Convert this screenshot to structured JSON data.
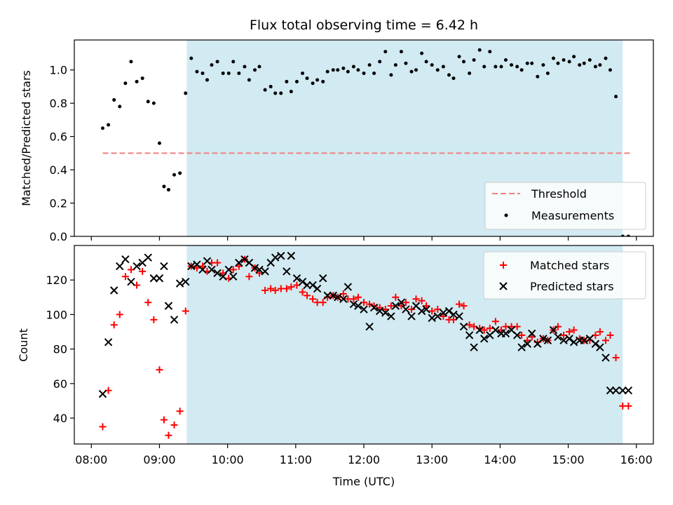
{
  "chart_data": [
    {
      "type": "scatter",
      "title": "Flux total observing time = 6.42 h",
      "xlabel": "",
      "ylabel": "Matched/Predicted stars",
      "ylim": [
        0,
        1.18
      ],
      "y_ticks": [
        "0.0",
        "0.2",
        "0.4",
        "0.6",
        "0.8",
        "1.0"
      ],
      "x_ticks": [
        "08:00",
        "09:00",
        "10:00",
        "11:00",
        "12:00",
        "13:00",
        "14:00",
        "15:00",
        "16:00"
      ],
      "shaded_region": {
        "start": "09:24",
        "end": "15:48",
        "color": "#add8e6"
      },
      "threshold": {
        "name": "Threshold",
        "value": 0.5,
        "start": "08:10",
        "end": "15:55",
        "color": "#f08080"
      },
      "legend": {
        "position": "lower-right",
        "entries": [
          "Threshold",
          "Measurements"
        ]
      },
      "series": [
        {
          "name": "Measurements",
          "color": "#000000",
          "x": [
            "08:10",
            "08:15",
            "08:20",
            "08:25",
            "08:30",
            "08:35",
            "08:40",
            "08:45",
            "08:50",
            "08:55",
            "09:00",
            "09:04",
            "09:08",
            "09:13",
            "09:18",
            "09:23",
            "09:28",
            "09:33",
            "09:38",
            "09:42",
            "09:46",
            "09:51",
            "09:56",
            "10:01",
            "10:05",
            "10:10",
            "10:15",
            "10:19",
            "10:24",
            "10:28",
            "10:33",
            "10:38",
            "10:42",
            "10:47",
            "10:52",
            "10:56",
            "11:01",
            "11:06",
            "11:10",
            "11:15",
            "11:19",
            "11:24",
            "11:28",
            "11:33",
            "11:37",
            "11:42",
            "11:46",
            "11:51",
            "11:55",
            "12:00",
            "12:05",
            "12:09",
            "12:14",
            "12:19",
            "12:24",
            "12:28",
            "12:33",
            "12:37",
            "12:42",
            "12:46",
            "12:51",
            "12:55",
            "13:00",
            "13:05",
            "13:10",
            "13:15",
            "13:19",
            "13:24",
            "13:28",
            "13:33",
            "13:37",
            "13:42",
            "13:46",
            "13:51",
            "13:56",
            "14:01",
            "14:05",
            "14:10",
            "14:15",
            "14:19",
            "14:24",
            "14:28",
            "14:33",
            "14:38",
            "14:42",
            "14:47",
            "14:51",
            "14:56",
            "15:01",
            "15:05",
            "15:10",
            "15:14",
            "15:19",
            "15:24",
            "15:28",
            "15:33",
            "15:37",
            "15:42",
            "15:48",
            "15:53"
          ],
          "y": [
            0.65,
            0.67,
            0.82,
            0.78,
            0.92,
            1.05,
            0.93,
            0.95,
            0.81,
            0.8,
            0.56,
            0.3,
            0.28,
            0.37,
            0.38,
            0.86,
            1.07,
            0.99,
            0.98,
            0.94,
            1.03,
            1.05,
            0.98,
            0.98,
            1.05,
            0.98,
            1.02,
            0.94,
            1.0,
            1.02,
            0.88,
            0.9,
            0.86,
            0.86,
            0.93,
            0.87,
            0.93,
            0.98,
            0.95,
            0.92,
            0.94,
            0.93,
            0.99,
            1.0,
            1.0,
            1.01,
            0.99,
            1.02,
            1.0,
            0.98,
            1.03,
            0.98,
            1.05,
            1.11,
            0.97,
            1.03,
            1.11,
            1.04,
            0.99,
            1.0,
            1.1,
            1.05,
            1.03,
            1.0,
            1.02,
            0.97,
            0.95,
            1.08,
            1.05,
            0.98,
            1.06,
            1.12,
            1.02,
            1.11,
            1.02,
            1.02,
            1.06,
            1.03,
            1.02,
            1.0,
            1.04,
            1.04,
            0.96,
            1.03,
            0.98,
            1.07,
            1.04,
            1.06,
            1.05,
            1.08,
            1.03,
            1.04,
            1.06,
            1.02,
            1.03,
            1.07,
            1.0,
            0.84,
            0.0,
            0.0
          ]
        }
      ]
    },
    {
      "type": "scatter",
      "title": "",
      "xlabel": "Time (UTC)",
      "ylabel": "Count",
      "ylim": [
        25,
        140
      ],
      "y_ticks": [
        "40",
        "60",
        "80",
        "100",
        "120"
      ],
      "x_ticks": [
        "08:00",
        "09:00",
        "10:00",
        "11:00",
        "12:00",
        "13:00",
        "14:00",
        "15:00",
        "16:00"
      ],
      "shaded_region": {
        "start": "09:24",
        "end": "15:48",
        "color": "#add8e6"
      },
      "legend": {
        "position": "upper-right",
        "entries": [
          "Matched stars",
          "Predicted stars"
        ]
      },
      "series": [
        {
          "name": "Matched stars",
          "marker": "plus",
          "color": "#ff0000",
          "x": [
            "08:10",
            "08:15",
            "08:20",
            "08:25",
            "08:30",
            "08:35",
            "08:40",
            "08:45",
            "08:50",
            "08:55",
            "09:00",
            "09:04",
            "09:08",
            "09:13",
            "09:18",
            "09:23",
            "09:28",
            "09:33",
            "09:38",
            "09:42",
            "09:46",
            "09:51",
            "09:56",
            "10:01",
            "10:05",
            "10:10",
            "10:15",
            "10:19",
            "10:24",
            "10:28",
            "10:33",
            "10:38",
            "10:42",
            "10:47",
            "10:52",
            "10:56",
            "11:01",
            "11:06",
            "11:10",
            "11:15",
            "11:19",
            "11:24",
            "11:28",
            "11:33",
            "11:37",
            "11:42",
            "11:46",
            "11:51",
            "11:55",
            "12:00",
            "12:05",
            "12:09",
            "12:14",
            "12:19",
            "12:24",
            "12:28",
            "12:33",
            "12:37",
            "12:42",
            "12:46",
            "12:51",
            "12:55",
            "13:00",
            "13:05",
            "13:10",
            "13:15",
            "13:19",
            "13:24",
            "13:28",
            "13:33",
            "13:37",
            "13:42",
            "13:46",
            "13:51",
            "13:56",
            "14:01",
            "14:05",
            "14:10",
            "14:15",
            "14:19",
            "14:24",
            "14:28",
            "14:33",
            "14:38",
            "14:42",
            "14:47",
            "14:51",
            "14:56",
            "15:01",
            "15:05",
            "15:10",
            "15:14",
            "15:19",
            "15:24",
            "15:28",
            "15:33",
            "15:37",
            "15:42",
            "15:48",
            "15:53"
          ],
          "y": [
            35,
            56,
            94,
            100,
            122,
            126,
            117,
            125,
            107,
            97,
            68,
            39,
            30,
            36,
            44,
            102,
            128,
            127,
            128,
            125,
            130,
            130,
            124,
            121,
            126,
            128,
            132,
            122,
            127,
            124,
            114,
            115,
            114,
            115,
            115,
            116,
            117,
            113,
            111,
            109,
            107,
            107,
            110,
            111,
            110,
            112,
            109,
            109,
            110,
            107,
            106,
            105,
            104,
            103,
            105,
            110,
            105,
            107,
            103,
            109,
            108,
            105,
            102,
            103,
            99,
            97,
            97,
            106,
            105,
            94,
            93,
            92,
            91,
            92,
            96,
            91,
            93,
            93,
            93,
            88,
            85,
            87,
            84,
            86,
            85,
            91,
            93,
            88,
            90,
            91,
            86,
            85,
            85,
            88,
            90,
            85,
            88,
            75,
            47,
            47
          ]
        },
        {
          "name": "Predicted stars",
          "marker": "x",
          "color": "#000000",
          "x": [
            "08:10",
            "08:15",
            "08:20",
            "08:25",
            "08:30",
            "08:35",
            "08:40",
            "08:45",
            "08:50",
            "08:55",
            "09:00",
            "09:04",
            "09:08",
            "09:13",
            "09:18",
            "09:23",
            "09:28",
            "09:33",
            "09:38",
            "09:42",
            "09:46",
            "09:51",
            "09:56",
            "10:01",
            "10:05",
            "10:10",
            "10:15",
            "10:19",
            "10:24",
            "10:28",
            "10:33",
            "10:38",
            "10:42",
            "10:47",
            "10:52",
            "10:56",
            "11:01",
            "11:06",
            "11:10",
            "11:15",
            "11:19",
            "11:24",
            "11:28",
            "11:33",
            "11:37",
            "11:42",
            "11:46",
            "11:51",
            "11:55",
            "12:00",
            "12:05",
            "12:09",
            "12:14",
            "12:19",
            "12:24",
            "12:28",
            "12:33",
            "12:37",
            "12:42",
            "12:46",
            "12:51",
            "12:55",
            "13:00",
            "13:05",
            "13:10",
            "13:15",
            "13:19",
            "13:24",
            "13:28",
            "13:33",
            "13:37",
            "13:42",
            "13:46",
            "13:51",
            "13:56",
            "14:01",
            "14:05",
            "14:10",
            "14:15",
            "14:19",
            "14:24",
            "14:28",
            "14:33",
            "14:38",
            "14:42",
            "14:47",
            "14:51",
            "14:56",
            "15:01",
            "15:05",
            "15:10",
            "15:14",
            "15:19",
            "15:24",
            "15:28",
            "15:33",
            "15:37",
            "15:42",
            "15:48",
            "15:53"
          ],
          "y": [
            54,
            84,
            114,
            128,
            132,
            119,
            128,
            130,
            133,
            121,
            121,
            128,
            105,
            97,
            118,
            119,
            128,
            129,
            126,
            131,
            126,
            124,
            122,
            126,
            122,
            130,
            132,
            130,
            127,
            126,
            125,
            130,
            133,
            134,
            125,
            134,
            121,
            119,
            117,
            117,
            115,
            121,
            111,
            111,
            110,
            109,
            116,
            106,
            105,
            103,
            93,
            104,
            102,
            101,
            99,
            105,
            107,
            103,
            99,
            105,
            102,
            103,
            98,
            99,
            101,
            102,
            100,
            99,
            93,
            88,
            81,
            91,
            86,
            88,
            91,
            89,
            89,
            91,
            88,
            81,
            83,
            89,
            83,
            86,
            85,
            91,
            87,
            85,
            86,
            84,
            85,
            85,
            86,
            83,
            81,
            75,
            56,
            56,
            56,
            56
          ]
        }
      ]
    }
  ]
}
